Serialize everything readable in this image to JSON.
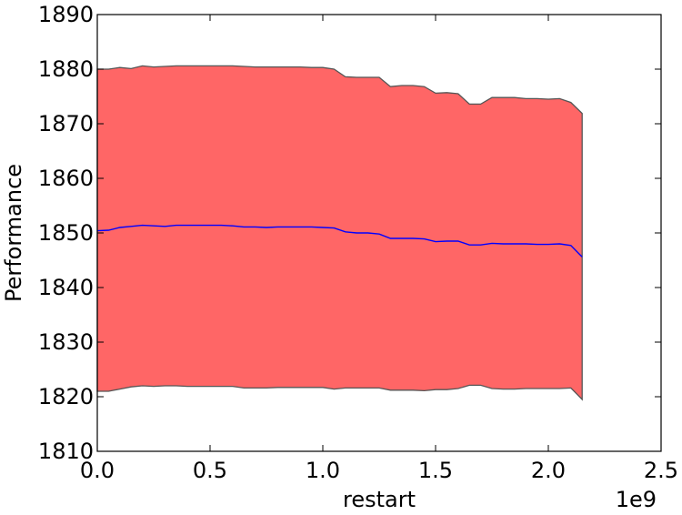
{
  "chart_data": {
    "type": "area",
    "title": "",
    "xlabel": "restart",
    "ylabel": "Performance",
    "x_offset_text": "1e9",
    "xlim": [
      0,
      2.5
    ],
    "ylim": [
      1810,
      1890
    ],
    "x_ticks": [
      "0.0",
      "0.5",
      "1.0",
      "1.5",
      "2.0",
      "2.5"
    ],
    "y_ticks": [
      "1810",
      "1820",
      "1830",
      "1840",
      "1850",
      "1860",
      "1870",
      "1880",
      "1890"
    ],
    "grid": false,
    "legend": "none",
    "colors": {
      "band_fill": "#ff6666",
      "band_edge": "#555555",
      "mean_line": "#0000ff"
    },
    "x": [
      0.0,
      0.05,
      0.1,
      0.15,
      0.2,
      0.25,
      0.3,
      0.35,
      0.4,
      0.45,
      0.5,
      0.55,
      0.6,
      0.65,
      0.7,
      0.75,
      0.8,
      0.85,
      0.9,
      0.95,
      1.0,
      1.05,
      1.1,
      1.15,
      1.2,
      1.25,
      1.3,
      1.35,
      1.4,
      1.45,
      1.5,
      1.55,
      1.6,
      1.65,
      1.7,
      1.75,
      1.8,
      1.85,
      1.9,
      1.95,
      2.0,
      2.05,
      2.1,
      2.15
    ],
    "series": [
      {
        "role": "upper",
        "values": [
          1880.0,
          1880.0,
          1880.3,
          1880.1,
          1880.6,
          1880.4,
          1880.5,
          1880.6,
          1880.6,
          1880.6,
          1880.6,
          1880.6,
          1880.6,
          1880.5,
          1880.4,
          1880.4,
          1880.4,
          1880.4,
          1880.4,
          1880.3,
          1880.3,
          1880.0,
          1878.6,
          1878.5,
          1878.5,
          1878.5,
          1876.8,
          1877.0,
          1877.0,
          1876.8,
          1875.6,
          1875.7,
          1875.5,
          1873.6,
          1873.6,
          1874.8,
          1874.8,
          1874.8,
          1874.6,
          1874.6,
          1874.5,
          1874.6,
          1873.9,
          1871.9
        ]
      },
      {
        "role": "mean",
        "values": [
          1850.4,
          1850.5,
          1851.0,
          1851.2,
          1851.4,
          1851.3,
          1851.2,
          1851.4,
          1851.4,
          1851.4,
          1851.4,
          1851.4,
          1851.3,
          1851.1,
          1851.1,
          1851.0,
          1851.1,
          1851.1,
          1851.1,
          1851.1,
          1851.0,
          1850.9,
          1850.2,
          1850.0,
          1850.0,
          1849.8,
          1849.0,
          1849.0,
          1849.0,
          1848.9,
          1848.4,
          1848.5,
          1848.5,
          1847.8,
          1847.8,
          1848.1,
          1848.0,
          1848.0,
          1848.0,
          1847.9,
          1847.9,
          1848.0,
          1847.7,
          1845.6
        ]
      },
      {
        "role": "lower",
        "values": [
          1821.0,
          1821.0,
          1821.4,
          1821.8,
          1822.0,
          1821.9,
          1822.0,
          1822.0,
          1821.9,
          1821.9,
          1821.9,
          1821.9,
          1821.9,
          1821.6,
          1821.6,
          1821.6,
          1821.7,
          1821.7,
          1821.7,
          1821.7,
          1821.7,
          1821.4,
          1821.6,
          1821.6,
          1821.6,
          1821.6,
          1821.2,
          1821.2,
          1821.2,
          1821.1,
          1821.3,
          1821.3,
          1821.5,
          1822.1,
          1822.1,
          1821.5,
          1821.4,
          1821.4,
          1821.5,
          1821.5,
          1821.5,
          1821.5,
          1821.6,
          1819.5
        ]
      }
    ]
  }
}
